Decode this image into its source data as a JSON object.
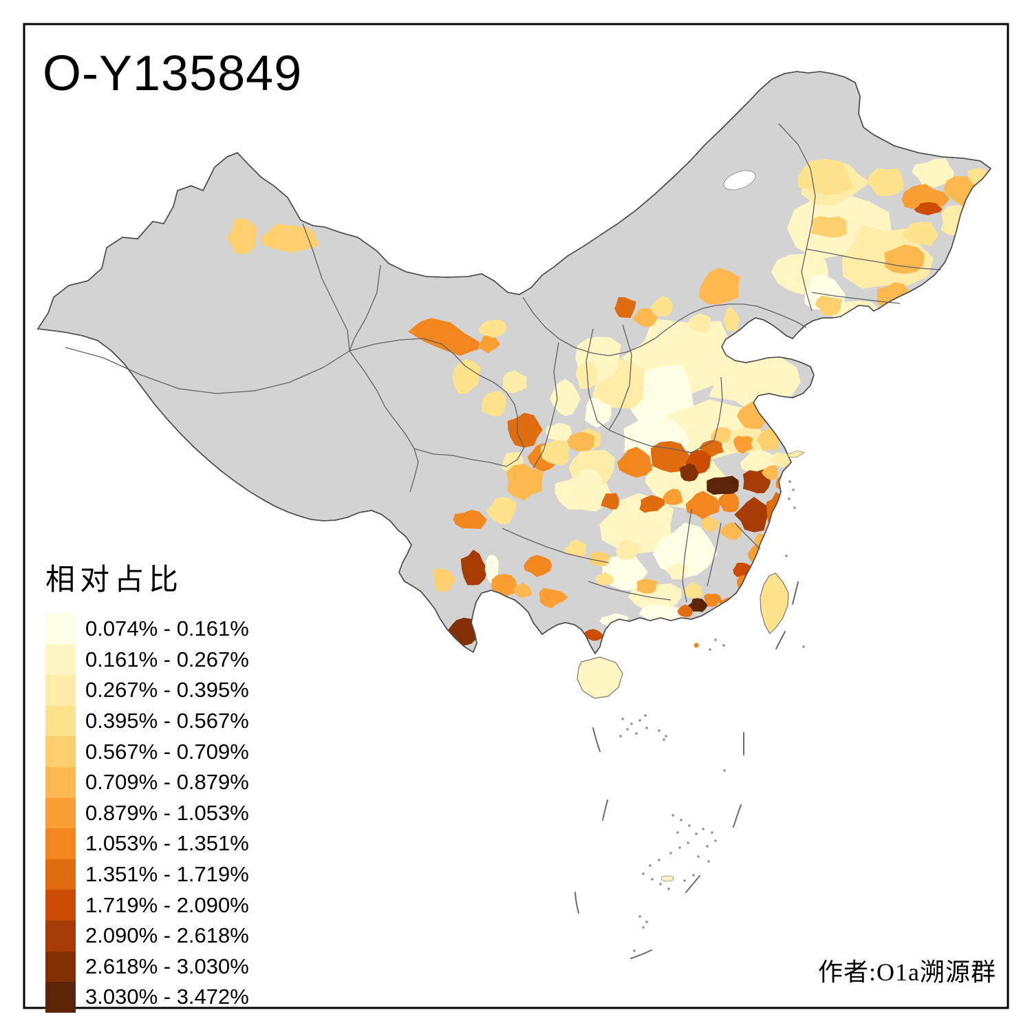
{
  "title": "O-Y135849",
  "attribution": "作者:O1a溯源群",
  "legend": {
    "title": "相对占比",
    "classes": [
      {
        "label": "0.074% - 0.161%",
        "color": "#FFFFE5"
      },
      {
        "label": "0.161% - 0.267%",
        "color": "#FFF6C4"
      },
      {
        "label": "0.267% - 0.395%",
        "color": "#FEEDA8"
      },
      {
        "label": "0.395% - 0.567%",
        "color": "#FEE28C"
      },
      {
        "label": "0.567% - 0.709%",
        "color": "#FDCF6E"
      },
      {
        "label": "0.709% - 0.879%",
        "color": "#FDB84F"
      },
      {
        "label": "0.879% - 1.053%",
        "color": "#FB9E34"
      },
      {
        "label": "1.053% - 1.351%",
        "color": "#F2871F"
      },
      {
        "label": "1.351% - 1.719%",
        "color": "#E06C10"
      },
      {
        "label": "1.719% - 2.090%",
        "color": "#CC4C04"
      },
      {
        "label": "2.090% - 2.618%",
        "color": "#A63C03"
      },
      {
        "label": "2.618% - 3.030%",
        "color": "#823003"
      },
      {
        "label": "3.030% - 3.472%",
        "color": "#5C2406"
      }
    ]
  },
  "map": {
    "background": "#FFFFFF",
    "no_data_fill": "#D3D3D3",
    "outline_color": "#4D4D4D",
    "province_border_color": "#606060",
    "frame_color": "#000000",
    "islands": [
      {
        "name": "taiwan",
        "class": 4
      },
      {
        "name": "hainan",
        "class": 2
      },
      {
        "name": "chongming",
        "class": 3
      },
      {
        "name": "pratas",
        "class": 2
      },
      {
        "name": "coastal-islet",
        "class": 8
      }
    ],
    "regions": [
      [
        2,
        1000,
        520,
        90,
        58
      ],
      [
        1,
        958,
        575,
        60,
        45
      ],
      [
        2,
        1095,
        555,
        70,
        40
      ],
      [
        3,
        1148,
        598,
        30,
        22
      ],
      [
        2,
        1032,
        622,
        78,
        42
      ],
      [
        1,
        952,
        640,
        50,
        33
      ],
      [
        3,
        900,
        560,
        42,
        40
      ],
      [
        2,
        870,
        520,
        33,
        33
      ],
      [
        3,
        1085,
        640,
        33,
        22
      ],
      [
        2,
        1105,
        672,
        28,
        18
      ],
      [
        2,
        1000,
        700,
        58,
        38
      ],
      [
        2,
        928,
        762,
        55,
        42
      ],
      [
        1,
        995,
        805,
        42,
        42
      ],
      [
        2,
        845,
        718,
        40,
        28
      ],
      [
        3,
        862,
        680,
        33,
        28
      ],
      [
        1,
        905,
        832,
        33,
        27
      ],
      [
        2,
        955,
        868,
        38,
        22
      ],
      [
        1,
        962,
        893,
        32,
        16
      ],
      [
        2,
        1228,
        332,
        75,
        48
      ],
      [
        3,
        1288,
        375,
        65,
        48
      ],
      [
        2,
        1165,
        395,
        40,
        33
      ],
      [
        3,
        1212,
        265,
        52,
        32
      ],
      [
        1,
        1198,
        428,
        33,
        27
      ],
      [
        2,
        1248,
        458,
        38,
        22
      ],
      [
        3,
        1390,
        322,
        24,
        24
      ],
      [
        2,
        1358,
        250,
        30,
        20
      ],
      [
        5,
        354,
        346,
        23,
        29
      ],
      [
        5,
        424,
        345,
        42,
        21
      ],
      [
        8,
        648,
        490,
        55,
        20,
        20
      ],
      [
        7,
        710,
        500,
        15,
        13
      ],
      [
        4,
        716,
        477,
        20,
        13
      ],
      [
        4,
        678,
        548,
        21,
        25
      ],
      [
        4,
        718,
        588,
        19,
        21
      ],
      [
        3,
        748,
        556,
        20,
        16
      ],
      [
        9,
        762,
        625,
        27,
        25
      ],
      [
        8,
        790,
        664,
        21,
        19
      ],
      [
        2,
        812,
        628,
        17,
        15
      ],
      [
        3,
        745,
        672,
        17,
        15
      ],
      [
        2,
        822,
        580,
        21,
        27
      ],
      [
        3,
        852,
        545,
        17,
        22
      ],
      [
        1,
        868,
        600,
        19,
        21
      ],
      [
        4,
        855,
        640,
        19,
        17
      ],
      [
        9,
        908,
        448,
        17,
        17
      ],
      [
        6,
        938,
        463,
        17,
        14
      ],
      [
        4,
        962,
        446,
        15,
        14
      ],
      [
        6,
        1045,
        418,
        32,
        27
      ],
      [
        4,
        1063,
        465,
        13,
        17
      ],
      [
        3,
        1018,
        470,
        17,
        15
      ],
      [
        4,
        1200,
        258,
        42,
        26
      ],
      [
        5,
        1205,
        330,
        28,
        17
      ],
      [
        4,
        1290,
        265,
        28,
        21
      ],
      [
        7,
        1345,
        290,
        33,
        21
      ],
      [
        10,
        1349,
        304,
        21,
        9
      ],
      [
        6,
        1400,
        275,
        26,
        23
      ],
      [
        4,
        1424,
        256,
        18,
        13
      ],
      [
        4,
        1338,
        340,
        28,
        18
      ],
      [
        6,
        1315,
        378,
        33,
        20
      ],
      [
        6,
        1300,
        430,
        28,
        20
      ],
      [
        5,
        1205,
        443,
        20,
        14
      ],
      [
        6,
        1093,
        605,
        22,
        20
      ],
      [
        5,
        1118,
        640,
        18,
        16
      ],
      [
        3,
        1136,
        668,
        16,
        11
      ],
      [
        7,
        1080,
        645,
        15,
        13
      ],
      [
        5,
        1048,
        632,
        17,
        11
      ],
      [
        8,
        925,
        672,
        26,
        21
      ],
      [
        9,
        975,
        665,
        30,
        24
      ],
      [
        9,
        1035,
        650,
        17,
        13
      ],
      [
        10,
        1015,
        672,
        19,
        16
      ],
      [
        12,
        1002,
        687,
        15,
        12
      ],
      [
        13,
        1050,
        706,
        26,
        15
      ],
      [
        11,
        1100,
        700,
        21,
        19
      ],
      [
        8,
        1060,
        730,
        17,
        15
      ],
      [
        11,
        1096,
        748,
        26,
        24
      ],
      [
        9,
        1128,
        745,
        15,
        28
      ],
      [
        8,
        1140,
        702,
        14,
        13
      ],
      [
        6,
        1120,
        687,
        13,
        11
      ],
      [
        8,
        1022,
        733,
        24,
        21
      ],
      [
        7,
        978,
        722,
        15,
        13
      ],
      [
        9,
        888,
        728,
        15,
        13
      ],
      [
        9,
        947,
        733,
        19,
        13
      ],
      [
        6,
        1062,
        772,
        17,
        13
      ],
      [
        5,
        1032,
        762,
        15,
        11
      ],
      [
        6,
        762,
        700,
        29,
        27
      ],
      [
        4,
        806,
        658,
        24,
        19
      ],
      [
        6,
        846,
        642,
        19,
        14
      ],
      [
        2,
        855,
        700,
        21,
        17
      ],
      [
        4,
        730,
        742,
        21,
        21
      ],
      [
        8,
        685,
        755,
        24,
        14
      ],
      [
        11,
        688,
        828,
        19,
        28
      ],
      [
        5,
        645,
        842,
        17,
        17
      ],
      [
        1,
        716,
        828,
        10,
        22
      ],
      [
        7,
        733,
        852,
        19,
        17
      ],
      [
        12,
        674,
        918,
        22,
        20
      ],
      [
        7,
        716,
        882,
        17,
        14
      ],
      [
        8,
        780,
        822,
        21,
        15
      ],
      [
        7,
        802,
        868,
        21,
        14
      ],
      [
        6,
        760,
        858,
        14,
        11
      ],
      [
        4,
        838,
        798,
        17,
        13
      ],
      [
        5,
        872,
        812,
        15,
        11
      ],
      [
        4,
        880,
        842,
        14,
        10
      ],
      [
        3,
        912,
        800,
        19,
        15
      ],
      [
        6,
        940,
        852,
        17,
        13
      ],
      [
        4,
        1008,
        858,
        14,
        11
      ],
      [
        2,
        985,
        830,
        15,
        13
      ],
      [
        10,
        862,
        923,
        13,
        8
      ],
      [
        1,
        893,
        903,
        21,
        11
      ],
      [
        9,
        996,
        888,
        11,
        9
      ],
      [
        8,
        1035,
        872,
        13,
        11
      ],
      [
        13,
        1014,
        880,
        13,
        10
      ],
      [
        10,
        1078,
        828,
        13,
        11
      ],
      [
        8,
        1086,
        852,
        17,
        16
      ],
      [
        7,
        1100,
        805,
        13,
        13
      ],
      [
        6,
        1108,
        786,
        11,
        11
      ],
      [
        8,
        1058,
        878,
        13,
        9
      ]
    ]
  }
}
